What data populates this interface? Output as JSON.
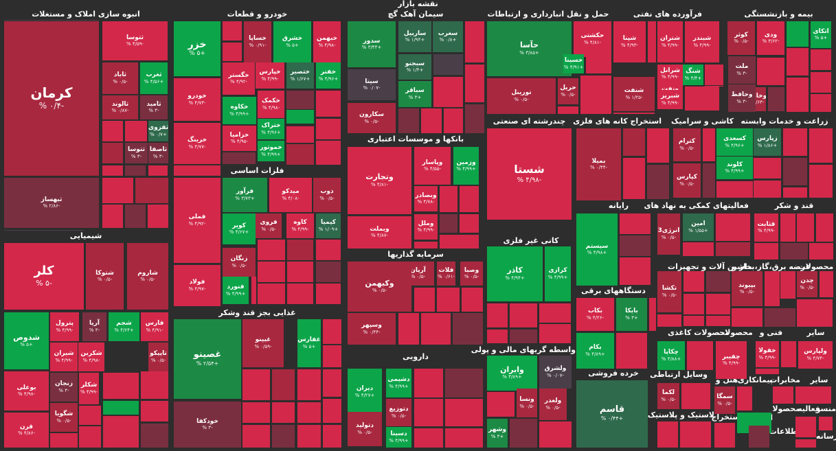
{
  "chart_data": {
    "type": "treemap",
    "title": "نقشه بازار",
    "colors": {
      "background": "#2d2d2d",
      "pos_strong": "#0da54a",
      "pos_mid": "#1c8a45",
      "pos_weak": "#2f6a4c",
      "neutral": "#4a3f49",
      "neg_weak": "#7a2f40",
      "neg_mid": "#a8283f",
      "neg_strong": "#d3284a"
    },
    "sectors": [
      {
        "name": "انبوه سازی املاک و مستغلات"
      },
      {
        "name": "خودرو و قطعات"
      },
      {
        "name": "سیمان آهک گچ"
      },
      {
        "name": "حمل و نقل انبارداری و ارتباطات"
      },
      {
        "name": "فرآورده های نفتی"
      },
      {
        "name": "بیمه و بازنشستگی"
      },
      {
        "name": "شیمیایی"
      },
      {
        "name": "فلزات اساسی"
      },
      {
        "name": "بانکها و موسسات اعتباری"
      },
      {
        "name": "چندرشته ای صنعتی"
      },
      {
        "name": "استخراج کانه های فلزی"
      },
      {
        "name": "کاشی و سرامیک"
      },
      {
        "name": "زراعت و خدمات وابسته"
      },
      {
        "name": "غذایی بجز قند وشکر"
      },
      {
        "name": "سرمایه گذاریها"
      },
      {
        "name": "کانی غیر فلزی"
      },
      {
        "name": "رایانه"
      },
      {
        "name": "فعالیتهای کمکی به نهاد های"
      },
      {
        "name": "قند و شکر"
      },
      {
        "name": "دستگاههای برقی"
      },
      {
        "name": "ماشین آلات و تجهیزات"
      },
      {
        "name": "عرضه برق،گاز،بخار و"
      },
      {
        "name": "محصولات"
      },
      {
        "name": "محصولات کاغذی"
      },
      {
        "name": "محصولات"
      },
      {
        "name": "فنی و"
      },
      {
        "name": "سایر"
      },
      {
        "name": "واسطه گریهای مالی و پولی"
      },
      {
        "name": "دارویی"
      },
      {
        "name": "خرده فروشی"
      },
      {
        "name": "وسایل ارتباطی"
      },
      {
        "name": "هتل و"
      },
      {
        "name": "پیمانکاری"
      },
      {
        "name": "مخابرات"
      },
      {
        "name": "سایر"
      },
      {
        "name": "استخراج"
      },
      {
        "name": "لاستیک و پلاستیک"
      },
      {
        "name": "استخراج"
      },
      {
        "name": "محصولا"
      },
      {
        "name": "فعالیه"
      },
      {
        "name": "منسو"
      },
      {
        "name": "اطلاعات"
      },
      {
        "name": "رسانه"
      }
    ],
    "tiles": [
      {
        "symbol": "کرمان",
        "change": -0.4,
        "label": "-۰/۴ %"
      },
      {
        "symbol": "ثتوسا",
        "change": -4.59,
        "label": "-۴/۵۹ %"
      },
      {
        "symbol": "ثاباد",
        "change": -0.5,
        "label": "-۰/۵ %"
      },
      {
        "symbol": "ثغرب",
        "change": 4.56,
        "label": "+۴/۵۶ %"
      },
      {
        "symbol": "ثالوند",
        "change": -0.87,
        "label": "-۰/۸۷ %"
      },
      {
        "symbol": "ثامید",
        "change": -3.0,
        "label": "-۳ %"
      },
      {
        "symbol": "ثقزوی",
        "change": 0.7,
        "label": "+۰/۷ %"
      },
      {
        "symbol": "ثتوسا",
        "change": -3.0,
        "label": "-۳ %"
      },
      {
        "symbol": "ثاصفا",
        "change": -3.0,
        "label": "-۳ %"
      },
      {
        "symbol": "ثبهساز",
        "change": -2.86,
        "label": "-۲/۸۶ %"
      },
      {
        "symbol": "خزر",
        "change": 5.0,
        "label": "+۵ %"
      },
      {
        "symbol": "خساپا",
        "change": -0.91,
        "label": "-۰/۹۱ %"
      },
      {
        "symbol": "خشرق",
        "change": 5.0,
        "label": "+۵ %"
      },
      {
        "symbol": "خبهمن",
        "change": -4.98,
        "label": "-۴/۹۸ %"
      },
      {
        "symbol": "خودرو",
        "change": -4.73,
        "label": "-۴/۷۳ %"
      },
      {
        "symbol": "خگستر",
        "change": -4.92,
        "label": "-۴/۹۲ %"
      },
      {
        "symbol": "خپارس",
        "change": -4.99,
        "label": "-۴/۹۹ %"
      },
      {
        "symbol": "ختصیر",
        "change": 1.67,
        "label": "+۱/۶۷ %"
      },
      {
        "symbol": "خفنر",
        "change": 4.96,
        "label": "+۴/۹۶ %"
      },
      {
        "symbol": "خکمک",
        "change": -4.98,
        "label": "-۴/۹۸ %"
      },
      {
        "symbol": "خکاوه",
        "change": 4.99,
        "label": "+۴/۹۹ %"
      },
      {
        "symbol": "ختراک",
        "change": 4.96,
        "label": "+۴/۹۶ %"
      },
      {
        "symbol": "خرینگ",
        "change": -4.77,
        "label": "-۴/۷۷ %"
      },
      {
        "symbol": "خزامیا",
        "change": -4.95,
        "label": "-۴/۹۵ %"
      },
      {
        "symbol": "خموتور",
        "change": 4.99,
        "label": "+۴/۹۹ %"
      },
      {
        "symbol": "سدور",
        "change": 3.44,
        "label": "+۳/۴۴ %"
      },
      {
        "symbol": "ساربیل",
        "change": 1.94,
        "label": "+۱/۹۴ %"
      },
      {
        "symbol": "سغرب",
        "change": 0.8,
        "label": "+۰/۸ %"
      },
      {
        "symbol": "سبجنو",
        "change": 1.4,
        "label": "+۱/۴ %"
      },
      {
        "symbol": "سیتا",
        "change": -0.07,
        "label": "-۰/۰۷ %"
      },
      {
        "symbol": "سباقر",
        "change": 3.0,
        "label": "+۳ %"
      },
      {
        "symbol": "سکارون",
        "change": -0.5,
        "label": "-۰/۵ %"
      },
      {
        "symbol": "حآسا",
        "change": 3.85,
        "label": "+۳/۸۵ %"
      },
      {
        "symbol": "حکشتی",
        "change": -4.81,
        "label": "-۴/۸۱ %"
      },
      {
        "symbol": "حسینا",
        "change": 4.91,
        "label": "+۴/۹۱ %"
      },
      {
        "symbol": "تورینل",
        "change": -0.5,
        "label": "-۰/۵ %"
      },
      {
        "symbol": "حریل",
        "change": -0.5,
        "label": "-۰/۵ %"
      },
      {
        "symbol": "شپنا",
        "change": -4.93,
        "label": "-۴/۹۳ %"
      },
      {
        "symbol": "شتران",
        "change": -4.99,
        "label": "-۴/۹۹ %"
      },
      {
        "symbol": "شبندر",
        "change": -4.99,
        "label": "-۴/۹۹ %"
      },
      {
        "symbol": "شرانل",
        "change": -4.99,
        "label": "-۴/۹۹ %"
      },
      {
        "symbol": "شنگ",
        "change": 4.4,
        "label": "+۴/۴ %"
      },
      {
        "symbol": "ونفت",
        "change": -4.86,
        "label": "-۴/۸۶ %"
      },
      {
        "symbol": "شنفت",
        "change": -1.25,
        "label": "-۱/۲۵ %"
      },
      {
        "symbol": "شبریز",
        "change": -4.99,
        "label": "-۴/۹۹ %"
      },
      {
        "symbol": "وخارزم",
        "change": -1.64,
        "label": "-۱/۶۴ %"
      },
      {
        "symbol": "کوثر",
        "change": -0.5,
        "label": "-۰/۵ %"
      },
      {
        "symbol": "ودی",
        "change": -3.62,
        "label": "-۳/۶۲ %"
      },
      {
        "symbol": "اتکای",
        "change": 5.0,
        "label": "+۵ %"
      },
      {
        "symbol": "ملت",
        "change": -3.0,
        "label": "-۳ %"
      },
      {
        "symbol": "وحافظ",
        "change": -3.0,
        "label": "-۳ %"
      },
      {
        "symbol": "کلر",
        "change": -5.0,
        "label": "-۵ %"
      },
      {
        "symbol": "شتوکا",
        "change": -0.5,
        "label": "-۰/۵ %"
      },
      {
        "symbol": "شاروم",
        "change": -0.5,
        "label": "-۰/۵ %"
      },
      {
        "symbol": "شدوص",
        "change": 5.0,
        "label": "+۵ %"
      },
      {
        "symbol": "پترول",
        "change": -4.99,
        "label": "-۴/۹۹ %"
      },
      {
        "symbol": "آریا",
        "change": -3.0,
        "label": "-۳ %"
      },
      {
        "symbol": "شجم",
        "change": 4.64,
        "label": "+۴/۶۴ %"
      },
      {
        "symbol": "فارس",
        "change": -4.91,
        "label": "-۴/۹۱ %"
      },
      {
        "symbol": "شیران",
        "change": -4.99,
        "label": "-۴/۹۹ %"
      },
      {
        "symbol": "شکربن",
        "change": -4.98,
        "label": "-۴/۹۸ %"
      },
      {
        "symbol": "تاپیکو",
        "change": -0.5,
        "label": "-۰/۵ %"
      },
      {
        "symbol": "بوعلی",
        "change": -4.98,
        "label": "-۴/۹۸ %"
      },
      {
        "symbol": "زنجان",
        "change": -3.0,
        "label": "-۳ %"
      },
      {
        "symbol": "شکلر",
        "change": -4.99,
        "label": "-۴/۹۹ %"
      },
      {
        "symbol": "قرن",
        "change": -4.86,
        "label": "-۴/۸۶ %"
      },
      {
        "symbol": "شگویا",
        "change": -0.5,
        "label": "-۰/۵ %"
      },
      {
        "symbol": "فملی",
        "change": -4.92,
        "label": "-۴/۹۲ %"
      },
      {
        "symbol": "فرآور",
        "change": 3.73,
        "label": "+۳/۷۳ %"
      },
      {
        "symbol": "میدکو",
        "change": -4.08,
        "label": "-۴/۰۸ %"
      },
      {
        "symbol": "ذوب",
        "change": -0.5,
        "label": "-۰/۵ %"
      },
      {
        "symbol": "کویر",
        "change": 4.67,
        "label": "+۴/۶۷ %"
      },
      {
        "symbol": "فروی",
        "change": -0.5,
        "label": "-۰/۵ %"
      },
      {
        "symbol": "کاوه",
        "change": -4.99,
        "label": "-۴/۹۹ %"
      },
      {
        "symbol": "کیمیا",
        "change": 1.09,
        "label": "+۱/۰۹ %"
      },
      {
        "symbol": "زنگان",
        "change": -0.5,
        "label": "-۰/۵ %"
      },
      {
        "symbol": "فولاد",
        "change": -4.97,
        "label": "-۴/۹۷ %"
      },
      {
        "symbol": "فنورد",
        "change": 4.99,
        "label": "+۴/۹۹ %"
      },
      {
        "symbol": "وتجارت",
        "change": -4.81,
        "label": "-۴/۸۱ %"
      },
      {
        "symbol": "وپاسار",
        "change": -4.55,
        "label": "-۴/۵۵ %"
      },
      {
        "symbol": "وزمین",
        "change": 4.99,
        "label": "+۴/۹۹ %"
      },
      {
        "symbol": "وبصادر",
        "change": -4.78,
        "label": "-۴/۷۸ %"
      },
      {
        "symbol": "وبملت",
        "change": -4.87,
        "label": "-۴/۸۷ %"
      },
      {
        "symbol": "وملل",
        "change": -4.99,
        "label": "-۴/۹۹ %"
      },
      {
        "symbol": "شستا",
        "change": -4.98,
        "label": "-۴/۹۸ %"
      },
      {
        "symbol": "بمیلا",
        "change": -0.44,
        "label": "-۰/۴۴ %"
      },
      {
        "symbol": "کترام",
        "change": -0.5,
        "label": "-۰/۵ %"
      },
      {
        "symbol": "کسعدی",
        "change": 4.96,
        "label": "+۴/۹۶ %"
      },
      {
        "symbol": "کلوند",
        "change": 4.99,
        "label": "+۴/۹۹ %"
      },
      {
        "symbol": "کپارس",
        "change": -0.5,
        "label": "-۰/۵ %"
      },
      {
        "symbol": "زپارس",
        "change": 1.86,
        "label": "+۱/۸۶ %"
      },
      {
        "symbol": "غصینو",
        "change": 2.54,
        "label": "+۲/۵۴ %"
      },
      {
        "symbol": "غبینو",
        "change": -0.59,
        "label": "-۰/۵۹ %"
      },
      {
        "symbol": "غفارس",
        "change": 5.0,
        "label": "+۵ %"
      },
      {
        "symbol": "خودکفا",
        "change": -3.0,
        "label": "-۳ %"
      },
      {
        "symbol": "آریان",
        "change": -0.5,
        "label": "-۰/۵ %"
      },
      {
        "symbol": "فلات",
        "change": -0.61,
        "label": "-۰/۶۱ %"
      },
      {
        "symbol": "وصبا",
        "change": -0.5,
        "label": "-۰/۵ %"
      },
      {
        "symbol": "وکبهمن",
        "change": -0.5,
        "label": "-۰/۵ %"
      },
      {
        "symbol": "وسپهر",
        "change": -0.44,
        "label": "-۰/۴۴ %"
      },
      {
        "symbol": "کاذر",
        "change": 4.94,
        "label": "+۴/۹۴ %"
      },
      {
        "symbol": "کرازی",
        "change": 4.99,
        "label": "+۴/۹۹ %"
      },
      {
        "symbol": "سیستم",
        "change": 4.98,
        "label": "+۴/۹۸ %"
      },
      {
        "symbol": "امین",
        "change": 1.55,
        "label": "+۱/۵۵ %"
      },
      {
        "symbol": "انرژی3",
        "change": -0.5,
        "label": "-۰/۵ %"
      },
      {
        "symbol": "قثابت",
        "change": -4.99,
        "label": "-۴/۹۹ %"
      },
      {
        "symbol": "بکاب",
        "change": -4.26,
        "label": "-۴/۲۶ %"
      },
      {
        "symbol": "بایکا",
        "change": 3.0,
        "label": "+۳ %"
      },
      {
        "symbol": "بکام",
        "change": 4.89,
        "label": "+۴/۸۹ %"
      },
      {
        "symbol": "تکشا",
        "change": -0.5,
        "label": "-۰/۵ %"
      },
      {
        "symbol": "بپیوند",
        "change": -0.5,
        "label": "-۰/۵ %"
      },
      {
        "symbol": "چدن",
        "change": -0.5,
        "label": "-۰/۵ %"
      },
      {
        "symbol": "چکاپا",
        "change": 4.88,
        "label": "+۴/۸۸ %"
      },
      {
        "symbol": "چفیبر",
        "change": -4.99,
        "label": "-۴/۹۹ %"
      },
      {
        "symbol": "خفولا",
        "change": -4.99,
        "label": "-۴/۹۹ %"
      },
      {
        "symbol": "ولپارس",
        "change": -4.74,
        "label": "-۴/۷۴ %"
      },
      {
        "symbol": "وایران",
        "change": 4.89,
        "label": "+۴/۸۹ %"
      },
      {
        "symbol": "ولشرق",
        "change": -0.07,
        "label": "-۰/۰۷ %"
      },
      {
        "symbol": "ونسا",
        "change": -0.5,
        "label": "-۰/۵ %"
      },
      {
        "symbol": "ولغدر",
        "change": -0.5,
        "label": "-۰/۵ %"
      },
      {
        "symbol": "وشهر",
        "change": 3.0,
        "label": "+۳ %"
      },
      {
        "symbol": "دشیمی",
        "change": 4.99,
        "label": "+۴/۹۹ %"
      },
      {
        "symbol": "دیران",
        "change": 4.27,
        "label": "+۴/۲۷ %"
      },
      {
        "symbol": "دتوزیع",
        "change": -0.5,
        "label": "-۰/۵ %"
      },
      {
        "symbol": "دتولید",
        "change": -0.5,
        "label": "-۰/۵ %"
      },
      {
        "symbol": "دسینا",
        "change": 4.99,
        "label": "+۴/۹۹ %"
      },
      {
        "symbol": "قاسم",
        "change": 0.44,
        "label": "+۰/۴۴ %"
      },
      {
        "symbol": "لکما",
        "change": -0.5,
        "label": "-۰/۵ %"
      },
      {
        "symbol": "سمگا",
        "change": -0.5,
        "label": "-۰/۵ %"
      }
    ]
  }
}
